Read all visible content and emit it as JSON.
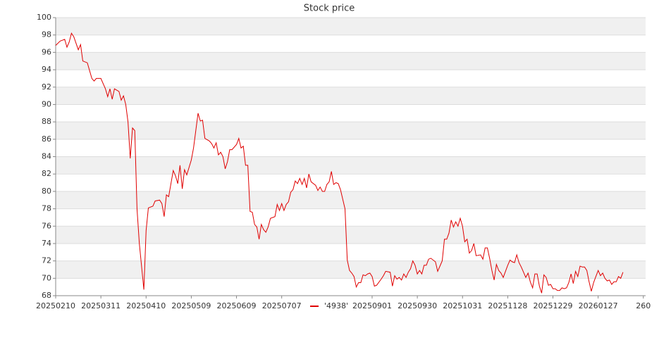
{
  "chart_data": {
    "type": "line",
    "title": "Stock price",
    "x": [
      0,
      2,
      4,
      5,
      6,
      7,
      8,
      10,
      11,
      12,
      14,
      16,
      17,
      18,
      20,
      22,
      23,
      24,
      25,
      26,
      28,
      29,
      30,
      31,
      32,
      33,
      34,
      35,
      36,
      37,
      39,
      40,
      41,
      43,
      44,
      46,
      47,
      48,
      49,
      50,
      52,
      53,
      54,
      55,
      56,
      57,
      58,
      60,
      61,
      62,
      63,
      64,
      65,
      66,
      68,
      69,
      70,
      71,
      72,
      73,
      74,
      75,
      76,
      77,
      78,
      80,
      81,
      82,
      83,
      84,
      85,
      86,
      87,
      88,
      89,
      90,
      91,
      92,
      93,
      94,
      95,
      97,
      98,
      99,
      100,
      101,
      102,
      103,
      104,
      105,
      106,
      107,
      108,
      109,
      110,
      111,
      112,
      113,
      115,
      116,
      117,
      118,
      119,
      120,
      121,
      122,
      123,
      124,
      125,
      126,
      128,
      129,
      130,
      131,
      132,
      133,
      134,
      135,
      136,
      137,
      138,
      139,
      140,
      141,
      142,
      144,
      145,
      146,
      148,
      149,
      150,
      151,
      152,
      153,
      154,
      155,
      156,
      157,
      158,
      159,
      160,
      161,
      162,
      163,
      164,
      165,
      166,
      168,
      169,
      170,
      171,
      172,
      173,
      174,
      175,
      176,
      177,
      178,
      179,
      180,
      181,
      182,
      183,
      184,
      185,
      186,
      188,
      189,
      190,
      191,
      192,
      193,
      194,
      195,
      196,
      197,
      198,
      199,
      200,
      201,
      202,
      203,
      204,
      205,
      206,
      207,
      208,
      209,
      210,
      211,
      212,
      213,
      214,
      215,
      216,
      217,
      218,
      219,
      220,
      221,
      222,
      223,
      224,
      225,
      226,
      227,
      228,
      229,
      230,
      231,
      232,
      233,
      234,
      235,
      236,
      237,
      238,
      239,
      240,
      241,
      242,
      243,
      244,
      245,
      246,
      247,
      248,
      249,
      250,
      251
    ],
    "series": [
      {
        "name": "'4938'",
        "color": "#e00000",
        "values": [
          96.8,
          97.3,
          97.5,
          96.6,
          97.2,
          98.2,
          97.8,
          96.3,
          96.9,
          95.0,
          94.8,
          93.0,
          92.7,
          93.0,
          93.0,
          91.8,
          90.9,
          91.8,
          90.6,
          91.8,
          91.5,
          90.5,
          91.0,
          90.0,
          88.0,
          83.8,
          87.3,
          87.0,
          78.0,
          74.0,
          68.7,
          75.5,
          78.1,
          78.3,
          78.9,
          79.0,
          78.6,
          77.1,
          79.6,
          79.4,
          82.4,
          81.8,
          80.9,
          83.0,
          80.3,
          82.5,
          81.9,
          83.6,
          85.0,
          87.0,
          89.0,
          88.1,
          88.2,
          86.1,
          85.8,
          85.5,
          85.0,
          85.6,
          84.2,
          84.5,
          84.0,
          82.6,
          83.4,
          84.8,
          84.8,
          85.4,
          86.1,
          85.0,
          85.2,
          83.0,
          83.0,
          77.7,
          77.6,
          76.2,
          75.9,
          74.5,
          76.2,
          75.6,
          75.3,
          75.9,
          76.9,
          77.1,
          78.5,
          77.8,
          78.6,
          77.8,
          78.5,
          78.8,
          79.9,
          80.2,
          81.2,
          80.9,
          81.5,
          80.8,
          81.5,
          80.4,
          82.0,
          81.1,
          80.7,
          80.1,
          80.5,
          80.0,
          80.0,
          80.8,
          81.1,
          82.3,
          80.8,
          81.0,
          80.9,
          80.2,
          78.0,
          72.1,
          70.9,
          70.6,
          70.2,
          69.0,
          69.5,
          69.5,
          70.4,
          70.3,
          70.5,
          70.6,
          70.2,
          69.1,
          69.2,
          69.9,
          70.3,
          70.8,
          70.7,
          69.1,
          70.3,
          69.9,
          70.1,
          69.8,
          70.5,
          70.1,
          70.7,
          71.1,
          72.0,
          71.5,
          70.5,
          70.9,
          70.5,
          71.5,
          71.5,
          72.2,
          72.3,
          71.9,
          70.8,
          71.4,
          72.0,
          74.5,
          74.5,
          75.2,
          76.7,
          75.9,
          76.5,
          76.0,
          76.9,
          76.0,
          74.2,
          74.5,
          72.9,
          73.2,
          74.0,
          72.6,
          72.7,
          72.2,
          73.5,
          73.5,
          72.3,
          70.9,
          69.8,
          71.6,
          70.9,
          70.6,
          70.1,
          70.8,
          71.5,
          72.1,
          71.9,
          71.8,
          72.7,
          71.8,
          71.3,
          70.7,
          70.1,
          70.6,
          69.6,
          68.9,
          70.5,
          70.5,
          69.1,
          68.3,
          70.4,
          70.1,
          69.2,
          69.3,
          68.8,
          68.8,
          68.6,
          68.6,
          68.9,
          68.8,
          68.9,
          69.5,
          70.5,
          69.4,
          70.8,
          70.2,
          71.4,
          71.3,
          71.3,
          70.9,
          69.6,
          68.5,
          69.5,
          70.2,
          70.9,
          70.3,
          70.6,
          70.0,
          69.7,
          69.8,
          69.3,
          69.6,
          69.6,
          70.2,
          70.0,
          70.7
        ]
      }
    ],
    "xlim": [
      0,
      261
    ],
    "xticks": [
      {
        "value": 0,
        "label": "20250210"
      },
      {
        "value": 20,
        "label": "20250311"
      },
      {
        "value": 40,
        "label": "20250410"
      },
      {
        "value": 60,
        "label": "20250509"
      },
      {
        "value": 80,
        "label": "20250609"
      },
      {
        "value": 100,
        "label": "20250707"
      },
      {
        "value": 140,
        "label": "20250901"
      },
      {
        "value": 160,
        "label": "20250930"
      },
      {
        "value": 180,
        "label": "20251031"
      },
      {
        "value": 200,
        "label": "20251128"
      },
      {
        "value": 220,
        "label": "20251229"
      },
      {
        "value": 240,
        "label": "20260127"
      },
      260
    ],
    "ylim": [
      68,
      100
    ],
    "yticks": [
      68,
      70,
      72,
      74,
      76,
      78,
      80,
      82,
      84,
      86,
      88,
      90,
      92,
      94,
      96,
      98,
      100
    ],
    "grid": true,
    "legend": "bottom"
  }
}
